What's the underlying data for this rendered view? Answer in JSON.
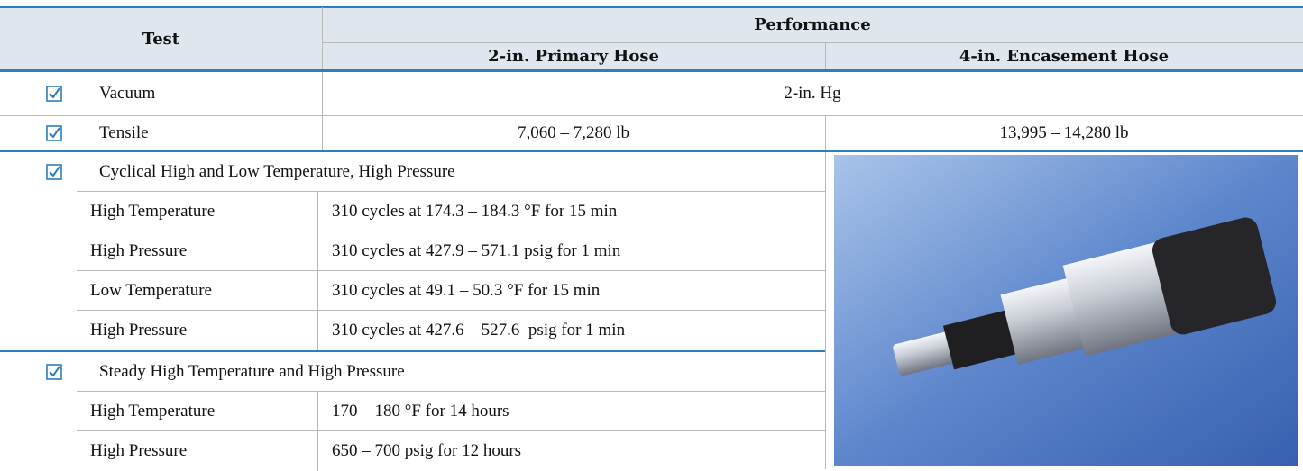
{
  "header": {
    "test": "Test",
    "performance": "Performance",
    "primary": "2-in. Primary Hose",
    "encasement": "4-in. Encasement Hose"
  },
  "rows": {
    "vacuum": {
      "label": "Vacuum",
      "value": "2-in. Hg"
    },
    "tensile": {
      "label": "Tensile",
      "primary": "7,060 – 7,280 lb",
      "encasement": "13,995 – 14,280 lb"
    }
  },
  "groups": [
    {
      "title": "Cyclical High and Low Temperature, High Pressure",
      "items": [
        {
          "label": "High Temperature",
          "value": "310 cycles at 174.3 – 184.3 °F for 15 min"
        },
        {
          "label": "High Pressure",
          "value": "310 cycles at 427.9 – 571.1 psig for 1 min"
        },
        {
          "label": "Low Temperature",
          "value": "310 cycles at 49.1 – 50.3 °F for 15 min"
        },
        {
          "label": "High Pressure",
          "value": "310 cycles at 427.6 – 527.6  psig for 1 min"
        }
      ]
    },
    {
      "title": "Steady High Temperature and High Pressure",
      "items": [
        {
          "label": "High Temperature",
          "value": "170 – 180 °F for 14 hours"
        },
        {
          "label": "High Pressure",
          "value": "650 – 700 psig for 12 hours"
        }
      ]
    }
  ]
}
